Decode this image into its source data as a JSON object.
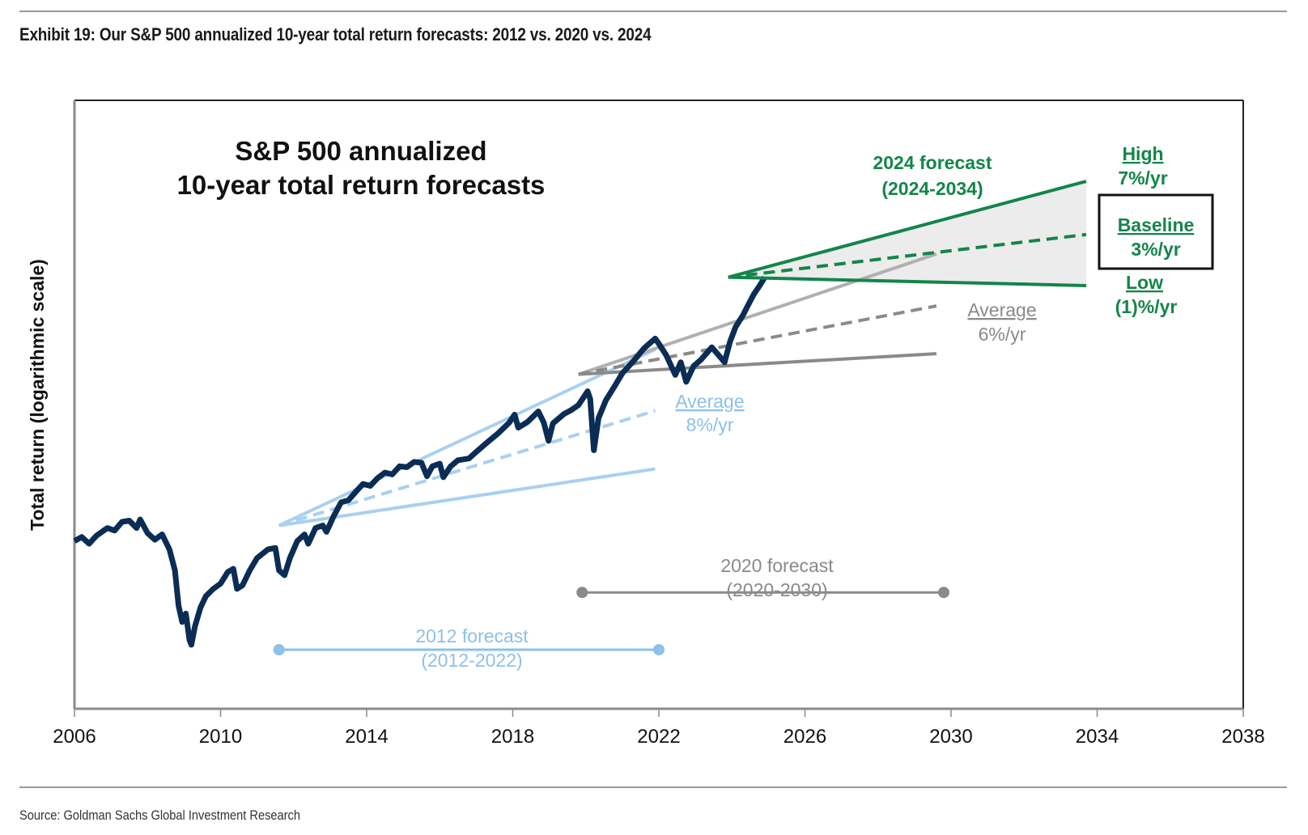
{
  "header": {
    "exhibit_title": "Exhibit 19: Our S&P 500 annualized 10-year total return forecasts: 2012 vs. 2020 vs. 2024"
  },
  "footer": {
    "source": "Source: Goldman Sachs Global Investment Research"
  },
  "colors": {
    "history": "#0b2d55",
    "forecast_2012": "#a9d0ef",
    "forecast_2012_text": "#8dc0ea",
    "forecast_2020": "#8a8a8a",
    "forecast_2020_light": "#b0b0b0",
    "forecast_2024": "#14854a",
    "fan_fill": "#ececec"
  },
  "chart_data": {
    "type": "line",
    "title": "S&P 500 annualized\n10-year total return forecasts",
    "title_lines": [
      "S&P 500 annualized",
      "10-year total return forecasts"
    ],
    "xlabel": "",
    "ylabel": "Total return (logarithmic scale)",
    "y_scale": "log",
    "y_units": "relative total return index (unlabeled)",
    "xlim": [
      2006,
      2038
    ],
    "ylim": [
      50,
      1600
    ],
    "x_ticks": [
      "2006",
      "2010",
      "2014",
      "2018",
      "2022",
      "2026",
      "2030",
      "2034",
      "2038"
    ],
    "grid": false,
    "series": [
      {
        "name": "S&P 500 total return",
        "style": "solid-thick",
        "points": [
          [
            2006.0,
            130
          ],
          [
            2006.2,
            133
          ],
          [
            2006.4,
            128
          ],
          [
            2006.6,
            134
          ],
          [
            2006.9,
            140
          ],
          [
            2007.1,
            138
          ],
          [
            2007.3,
            145
          ],
          [
            2007.5,
            146
          ],
          [
            2007.7,
            140
          ],
          [
            2007.8,
            147
          ],
          [
            2008.0,
            136
          ],
          [
            2008.2,
            131
          ],
          [
            2008.4,
            135
          ],
          [
            2008.6,
            124
          ],
          [
            2008.75,
            110
          ],
          [
            2008.85,
            90
          ],
          [
            2008.95,
            82
          ],
          [
            2009.05,
            86
          ],
          [
            2009.15,
            74
          ],
          [
            2009.2,
            72
          ],
          [
            2009.3,
            80
          ],
          [
            2009.45,
            89
          ],
          [
            2009.6,
            95
          ],
          [
            2009.8,
            99
          ],
          [
            2010.0,
            102
          ],
          [
            2010.2,
            109
          ],
          [
            2010.35,
            111
          ],
          [
            2010.45,
            99
          ],
          [
            2010.6,
            101
          ],
          [
            2010.8,
            110
          ],
          [
            2011.0,
            118
          ],
          [
            2011.3,
            124
          ],
          [
            2011.5,
            125
          ],
          [
            2011.6,
            110
          ],
          [
            2011.75,
            107
          ],
          [
            2011.9,
            118
          ],
          [
            2012.1,
            130
          ],
          [
            2012.3,
            135
          ],
          [
            2012.4,
            128
          ],
          [
            2012.6,
            140
          ],
          [
            2012.8,
            142
          ],
          [
            2012.9,
            137
          ],
          [
            2013.1,
            150
          ],
          [
            2013.3,
            162
          ],
          [
            2013.5,
            164
          ],
          [
            2013.7,
            172
          ],
          [
            2013.9,
            180
          ],
          [
            2014.1,
            178
          ],
          [
            2014.3,
            186
          ],
          [
            2014.5,
            192
          ],
          [
            2014.7,
            190
          ],
          [
            2014.9,
            199
          ],
          [
            2015.1,
            198
          ],
          [
            2015.3,
            204
          ],
          [
            2015.5,
            203
          ],
          [
            2015.65,
            188
          ],
          [
            2015.8,
            199
          ],
          [
            2016.0,
            202
          ],
          [
            2016.1,
            187
          ],
          [
            2016.3,
            199
          ],
          [
            2016.5,
            206
          ],
          [
            2016.8,
            208
          ],
          [
            2017.0,
            216
          ],
          [
            2017.3,
            228
          ],
          [
            2017.6,
            240
          ],
          [
            2017.9,
            255
          ],
          [
            2018.05,
            267
          ],
          [
            2018.15,
            248
          ],
          [
            2018.4,
            256
          ],
          [
            2018.7,
            272
          ],
          [
            2018.85,
            255
          ],
          [
            2018.98,
            230
          ],
          [
            2019.1,
            254
          ],
          [
            2019.4,
            268
          ],
          [
            2019.6,
            274
          ],
          [
            2019.8,
            282
          ],
          [
            2020.05,
            305
          ],
          [
            2020.12,
            292
          ],
          [
            2020.22,
            218
          ],
          [
            2020.35,
            262
          ],
          [
            2020.55,
            290
          ],
          [
            2020.8,
            315
          ],
          [
            2021.0,
            338
          ],
          [
            2021.3,
            362
          ],
          [
            2021.6,
            390
          ],
          [
            2021.9,
            412
          ],
          [
            2022.0,
            400
          ],
          [
            2022.2,
            375
          ],
          [
            2022.45,
            335
          ],
          [
            2022.6,
            360
          ],
          [
            2022.75,
            322
          ],
          [
            2022.95,
            352
          ],
          [
            2023.15,
            365
          ],
          [
            2023.45,
            392
          ],
          [
            2023.6,
            378
          ],
          [
            2023.8,
            360
          ],
          [
            2023.95,
            405
          ],
          [
            2024.1,
            440
          ],
          [
            2024.3,
            470
          ],
          [
            2024.45,
            500
          ],
          [
            2024.6,
            530
          ],
          [
            2024.75,
            555
          ],
          [
            2024.9,
            584
          ]
        ]
      },
      {
        "name": "2012 forecast (2012-2022)",
        "group": "2012",
        "start": [
          2011.6,
          142
        ],
        "lines": [
          {
            "name": "High",
            "style": "solid",
            "end": [
              2021.9,
              387
            ]
          },
          {
            "name": "Average 8%/yr",
            "style": "dashed",
            "end": [
              2021.9,
              273
            ]
          },
          {
            "name": "Low",
            "style": "solid",
            "end": [
              2021.9,
              196
            ]
          }
        ]
      },
      {
        "name": "2020 forecast (2020-2030)",
        "group": "2020",
        "start": [
          2019.8,
          336
        ],
        "lines": [
          {
            "name": "High",
            "style": "solid-light",
            "end": [
              2029.6,
              667
            ]
          },
          {
            "name": "Average 6%/yr",
            "style": "dashed",
            "end": [
              2029.6,
              496
            ]
          },
          {
            "name": "Low",
            "style": "solid",
            "end": [
              2029.6,
              378
            ]
          }
        ]
      },
      {
        "name": "2024 forecast (2024-2034)",
        "group": "2024",
        "start": [
          2023.9,
          584
        ],
        "lines": [
          {
            "name": "High 7%/yr",
            "style": "solid",
            "end": [
              2033.7,
              1009
            ]
          },
          {
            "name": "Baseline 3%/yr",
            "style": "dashed",
            "end": [
              2033.7,
              745
            ]
          },
          {
            "name": "Low (1)%/yr",
            "style": "solid",
            "end": [
              2033.7,
              557
            ]
          }
        ]
      }
    ],
    "period_markers": [
      {
        "name": "2012 forecast",
        "label_lines": [
          "2012 forecast",
          "(2012-2022)"
        ],
        "from": 2011.6,
        "to": 2022.0,
        "level": 70
      },
      {
        "name": "2020 forecast",
        "label_lines": [
          "2020 forecast",
          "(2020-2030)"
        ],
        "from": 2019.9,
        "to": 2029.8,
        "level": 97
      }
    ],
    "annotations": {
      "forecast_2024_label": [
        "2024 forecast",
        "(2024-2034)"
      ],
      "high": {
        "title": "High",
        "value": "7%/yr"
      },
      "baseline": {
        "title": "Baseline",
        "value": "3%/yr",
        "boxed": true
      },
      "low": {
        "title": "Low",
        "value": "(1)%/yr"
      },
      "avg_2020": {
        "title": "Average",
        "value": "6%/yr"
      },
      "avg_2012": {
        "title": "Average",
        "value": "8%/yr"
      }
    }
  }
}
